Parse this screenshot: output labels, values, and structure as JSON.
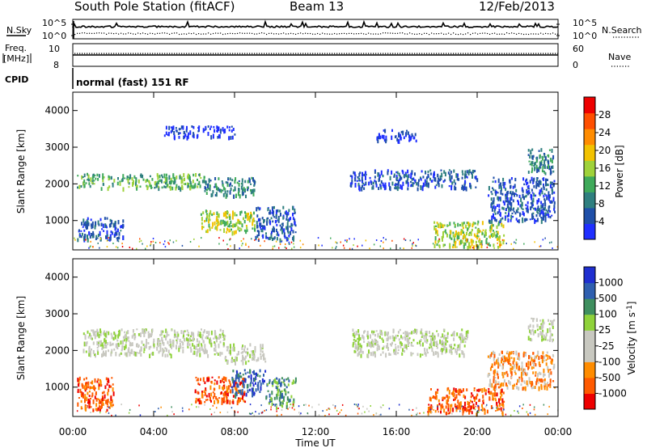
{
  "header": {
    "station": "South Pole Station (fitACF)",
    "beam": "Beam 13",
    "date": "12/Feb/2013"
  },
  "strips": {
    "nsky_label": "N.Sky",
    "nsearch_label": "N.Search",
    "nsky_ticks": [
      "10^5",
      "10^0"
    ],
    "freq_label_1": "Freq.",
    "freq_label_2": "[MHz]",
    "freq_ticks": [
      "10",
      "8"
    ],
    "nave_label": "Nave",
    "nave_ticks": [
      "60",
      "0"
    ],
    "cpid_label": "CPID",
    "cpid_text": "normal (fast) 151 RF"
  },
  "axes": {
    "xlabel": "Time UT",
    "ylabel": "Slant Range [km]",
    "x_ticks": [
      "00:00",
      "04:00",
      "08:00",
      "12:00",
      "16:00",
      "20:00",
      "00:00"
    ],
    "y_ticks": [
      "1000",
      "2000",
      "3000",
      "4000"
    ]
  },
  "colors": {
    "power": [
      "#1f2fff",
      "#1f4fa8",
      "#2f7f7f",
      "#3faa5a",
      "#9fd23a",
      "#f2c200",
      "#ff8c00",
      "#ff4f00",
      "#ee0000"
    ],
    "velocity": [
      "#ee0000",
      "#ff5a00",
      "#ff8c00",
      "#c8c8c0",
      "#c8c8c0",
      "#8fd23a",
      "#3f8f5f",
      "#2f5faf",
      "#1f2fd0"
    ],
    "ground_scatter": "#c8c8c0"
  },
  "chart_data": [
    {
      "type": "heatmap",
      "title": "",
      "xlabel": "Time UT",
      "ylabel": "Slant Range [km]",
      "xlim": [
        0,
        24
      ],
      "ylim": [
        200,
        4500
      ],
      "colorbar": {
        "label": "Power [dB]",
        "ticks": [
          "4",
          "8",
          "12",
          "16",
          "20",
          "24",
          "28"
        ],
        "range": [
          0,
          30
        ]
      },
      "regions": [
        {
          "t0": 0.2,
          "t1": 6.5,
          "r0": 1900,
          "r1": 2300,
          "level": 3
        },
        {
          "t0": 6.5,
          "t1": 9.0,
          "r0": 1700,
          "r1": 2200,
          "level": 2
        },
        {
          "t0": 0.2,
          "t1": 2.5,
          "r0": 500,
          "r1": 1100,
          "level": 1
        },
        {
          "t0": 6.3,
          "t1": 9.0,
          "r0": 700,
          "r1": 1300,
          "level": 4
        },
        {
          "t0": 9.0,
          "t1": 11.0,
          "r0": 500,
          "r1": 1400,
          "level": 1
        },
        {
          "t0": 4.5,
          "t1": 8.0,
          "r0": 3300,
          "r1": 3600,
          "level": 0
        },
        {
          "t0": 13.7,
          "t1": 20.0,
          "r0": 1900,
          "r1": 2400,
          "level": 1
        },
        {
          "t0": 15.0,
          "t1": 17.0,
          "r0": 3200,
          "r1": 3500,
          "level": 0
        },
        {
          "t0": 17.8,
          "t1": 21.3,
          "r0": 300,
          "r1": 1000,
          "level": 4
        },
        {
          "t0": 20.5,
          "t1": 23.8,
          "r0": 1000,
          "r1": 2200,
          "level": 1
        },
        {
          "t0": 22.5,
          "t1": 23.8,
          "r0": 2300,
          "r1": 3000,
          "level": 2
        }
      ]
    },
    {
      "type": "heatmap",
      "title": "",
      "xlabel": "Time UT",
      "ylabel": "Slant Range [km]",
      "xlim": [
        0,
        24
      ],
      "ylim": [
        200,
        4500
      ],
      "colorbar": {
        "label": "Velocity [m s^-1]",
        "ticks": [
          "1000",
          "500",
          "100",
          "25",
          "-25",
          "-100",
          "-500",
          "-1000"
        ],
        "range": [
          -1000,
          1000
        ]
      },
      "regions": [
        {
          "t0": 0.5,
          "t1": 7.5,
          "r0": 1900,
          "r1": 2600,
          "level": 4
        },
        {
          "t0": 7.5,
          "t1": 9.5,
          "r0": 1700,
          "r1": 2200,
          "level": 4
        },
        {
          "t0": 0.2,
          "t1": 2.0,
          "r0": 400,
          "r1": 1300,
          "level": 1
        },
        {
          "t0": 6.0,
          "t1": 8.5,
          "r0": 600,
          "r1": 1300,
          "level": 1
        },
        {
          "t0": 7.8,
          "t1": 9.5,
          "r0": 800,
          "r1": 1500,
          "level": 7
        },
        {
          "t0": 9.5,
          "t1": 11.0,
          "r0": 500,
          "r1": 1300,
          "level": 6
        },
        {
          "t0": 13.8,
          "t1": 19.5,
          "r0": 1900,
          "r1": 2600,
          "level": 4
        },
        {
          "t0": 17.5,
          "t1": 21.3,
          "r0": 300,
          "r1": 1000,
          "level": 1
        },
        {
          "t0": 20.5,
          "t1": 23.8,
          "r0": 1000,
          "r1": 2000,
          "level": 2
        },
        {
          "t0": 22.5,
          "t1": 23.8,
          "r0": 2300,
          "r1": 2900,
          "level": 4
        }
      ]
    }
  ]
}
